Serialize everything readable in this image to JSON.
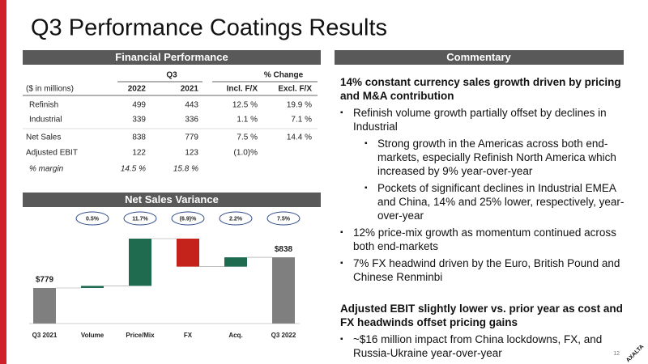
{
  "title": "Q3 Performance Coatings Results",
  "page_number": "12",
  "logo": "AXALTA",
  "financial": {
    "header": "Financial Performance",
    "group_headers": [
      "Q3",
      "% Change"
    ],
    "columns": [
      "($ in millions)",
      "2022",
      "2021",
      "Incl. F/X",
      "Excl. F/X"
    ],
    "rows": [
      [
        "Refinish",
        "499",
        "443",
        "12.5 %",
        "19.9 %"
      ],
      [
        "Industrial",
        "339",
        "336",
        "1.1 %",
        "7.1 %"
      ],
      [
        "Net Sales",
        "838",
        "779",
        "7.5 %",
        "14.4 %"
      ],
      [
        "Adjusted EBIT",
        "122",
        "123",
        "(1.0)%",
        null
      ],
      [
        "% margin",
        "14.5 %",
        "15.8 %",
        null,
        null
      ]
    ]
  },
  "chart_data": {
    "type": "waterfall",
    "title": "Net Sales Variance",
    "categories": [
      "Q3 2021",
      "Volume",
      "Price/Mix",
      "FX",
      "Acq.",
      "Q3 2022"
    ],
    "values": [
      779,
      4,
      91,
      -54,
      18,
      838
    ],
    "value_labels": [
      "$779",
      null,
      null,
      null,
      null,
      "$838"
    ],
    "change_labels": [
      null,
      "0.5%",
      "11.7%",
      "(6.9)%",
      "2.2%",
      "7.5%"
    ],
    "colors": {
      "total": "#7f7f7f",
      "increase": "#1e6b50",
      "decrease": "#c4231b"
    }
  },
  "commentary": {
    "header": "Commentary",
    "items": [
      {
        "level": 0,
        "text": "14% constant currency sales growth driven by pricing and M&A contribution"
      },
      {
        "level": 1,
        "text": "Refinish volume growth partially offset by declines in Industrial"
      },
      {
        "level": 2,
        "text": "Strong growth in the Americas across both end-markets, especially Refinish North America which increased by 9% year-over-year"
      },
      {
        "level": 2,
        "text": "Pockets of significant declines in Industrial EMEA and China, 14% and 25% lower, respectively, year-over-year"
      },
      {
        "level": 1,
        "text": "12% price-mix growth as momentum continued across both end-markets"
      },
      {
        "level": 1,
        "text": "7% FX headwind driven by the Euro, British Pound and Chinese Renminbi"
      },
      {
        "level": 0,
        "text": "Adjusted EBIT slightly lower vs. prior year as cost and FX headwinds offset pricing gains"
      },
      {
        "level": 1,
        "text": "~$16 million impact from China lockdowns, FX, and Russia-Ukraine year-over-year"
      }
    ]
  }
}
